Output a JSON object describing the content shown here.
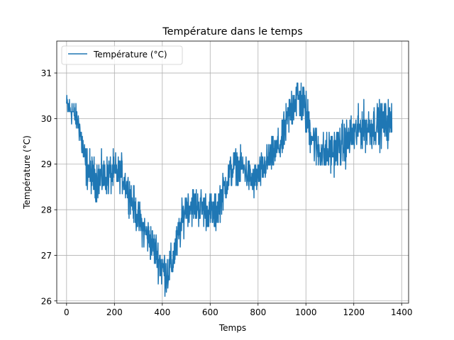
{
  "chart_data": {
    "type": "line",
    "title": "Température dans le temps",
    "xlabel": "Temps",
    "ylabel": "Température (°C)",
    "xlim": [
      -41,
      1429
    ],
    "ylim": [
      25.95,
      31.7
    ],
    "xticks": [
      0,
      200,
      400,
      600,
      800,
      1000,
      1200,
      1400
    ],
    "yticks": [
      26,
      27,
      28,
      29,
      30,
      31
    ],
    "x_tick_labels": [
      "0",
      "200",
      "400",
      "600",
      "800",
      "1000",
      "1200",
      "1400"
    ],
    "y_tick_labels": [
      "26",
      "27",
      "28",
      "29",
      "30",
      "31"
    ],
    "grid": true,
    "legend_position": "top-left",
    "n_points": 1360,
    "x_range": [
      0,
      1359
    ],
    "series": [
      {
        "name": "Température (°C)",
        "color": "#1f77b4",
        "trend_x": [
          0,
          20,
          50,
          80,
          110,
          150,
          200,
          230,
          260,
          300,
          350,
          380,
          400,
          420,
          440,
          470,
          500,
          540,
          580,
          620,
          660,
          700,
          740,
          780,
          820,
          860,
          900,
          930,
          960,
          990,
          1010,
          1040,
          1080,
          1120,
          1150,
          1190,
          1230,
          1270,
          1310,
          1359
        ],
        "trend_y": [
          30.3,
          30.2,
          29.9,
          29.0,
          28.7,
          28.7,
          28.8,
          28.8,
          28.4,
          27.8,
          27.3,
          27.0,
          26.7,
          26.6,
          26.8,
          27.5,
          28.1,
          28.1,
          28.0,
          27.9,
          28.5,
          29.0,
          28.9,
          28.6,
          28.9,
          29.2,
          29.5,
          30.1,
          30.5,
          30.3,
          29.9,
          29.4,
          29.2,
          29.3,
          29.4,
          29.6,
          29.8,
          29.8,
          29.9,
          29.9
        ],
        "noise_amplitude": [
          0.28,
          0.3,
          0.3,
          0.42,
          0.42,
          0.42,
          0.4,
          0.35,
          0.35,
          0.38,
          0.38,
          0.4,
          0.45,
          0.45,
          0.4,
          0.4,
          0.38,
          0.38,
          0.38,
          0.4,
          0.38,
          0.34,
          0.34,
          0.38,
          0.38,
          0.34,
          0.38,
          0.45,
          0.5,
          0.45,
          0.45,
          0.45,
          0.45,
          0.45,
          0.45,
          0.45,
          0.45,
          0.45,
          0.45,
          0.45
        ],
        "quantization_step": 0.09
      }
    ]
  }
}
